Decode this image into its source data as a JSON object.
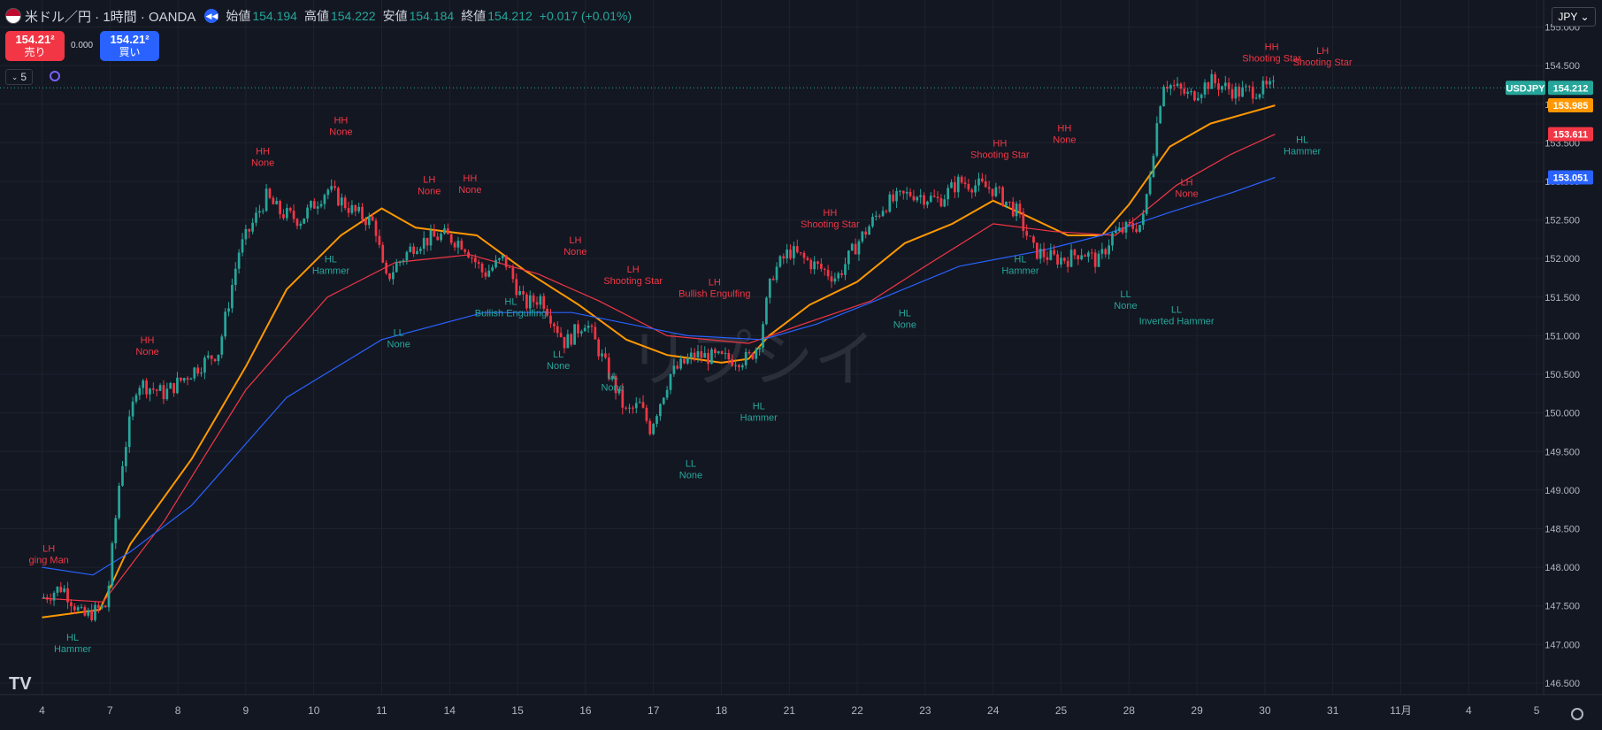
{
  "header": {
    "title": "米ドル／円 · 1時間 · OANDA",
    "open_label": "始値",
    "open": "154.194",
    "high_label": "高値",
    "high": "154.222",
    "low_label": "安値",
    "low": "154.184",
    "close_label": "終値",
    "close": "154.212",
    "change": "+0.017 (+0.01%)",
    "flag_icon": "us-flag-icon",
    "replay_icon": "rewind-icon"
  },
  "trade": {
    "sell_price": "154.21²",
    "sell_label": "売り",
    "buy_price": "154.21²",
    "buy_label": "買い",
    "spread": "0.000"
  },
  "indicator": {
    "count": "5"
  },
  "currency": "JPY ⌄",
  "logo": "TV",
  "colors": {
    "background": "#131722",
    "grid": "#1e222d",
    "up": "#26a69a",
    "down": "#f23645",
    "ma_fast": "#ff9800",
    "ma_mid": "#f23645",
    "ma_slow": "#2962ff",
    "axis_text": "#b2b5be"
  },
  "chart_data": {
    "type": "candlestick",
    "symbol": "USDJPY",
    "price_axis": {
      "ticks": [
        "155.000",
        "154.500",
        "154.000",
        "153.500",
        "153.000",
        "152.500",
        "152.000",
        "151.500",
        "151.000",
        "150.500",
        "150.000",
        "149.500",
        "149.000",
        "148.500",
        "148.000",
        "147.500",
        "147.000",
        "146.500"
      ],
      "range": [
        146.35,
        155.35
      ]
    },
    "time_axis": {
      "ticks": [
        "4",
        "7",
        "8",
        "9",
        "10",
        "11",
        "14",
        "15",
        "16",
        "17",
        "18",
        "21",
        "22",
        "23",
        "24",
        "25",
        "28",
        "29",
        "30",
        "31",
        "11月",
        "4",
        "5"
      ]
    },
    "price_labels": [
      {
        "text": "USDJPY",
        "value": 154.212,
        "color": "#26a69a"
      },
      {
        "text": "154.212",
        "value": 154.212,
        "color": "#26a69a"
      },
      {
        "text": "153.985",
        "value": 153.985,
        "color": "#ff9800"
      },
      {
        "text": "153.611",
        "value": 153.611,
        "color": "#f23645"
      },
      {
        "text": "153.051",
        "value": 153.051,
        "color": "#2962ff"
      }
    ],
    "price_path": [
      [
        0,
        147.6
      ],
      [
        0.3,
        147.75
      ],
      [
        0.6,
        147.35
      ],
      [
        0.95,
        147.5
      ],
      [
        1.15,
        149.2
      ],
      [
        1.4,
        150.4
      ],
      [
        1.8,
        150.25
      ],
      [
        2.3,
        150.6
      ],
      [
        2.6,
        150.8
      ],
      [
        2.9,
        152.1
      ],
      [
        3.3,
        152.8
      ],
      [
        3.5,
        152.6
      ],
      [
        3.8,
        152.5
      ],
      [
        4.2,
        152.9
      ],
      [
        4.6,
        152.6
      ],
      [
        4.9,
        152.45
      ],
      [
        5.05,
        151.7
      ],
      [
        5.2,
        151.9
      ],
      [
        5.5,
        152.2
      ],
      [
        5.9,
        152.3
      ],
      [
        6.2,
        152.2
      ],
      [
        6.5,
        151.8
      ],
      [
        6.8,
        152.0
      ],
      [
        7.1,
        151.4
      ],
      [
        7.35,
        151.5
      ],
      [
        7.7,
        150.9
      ],
      [
        8.0,
        151.2
      ],
      [
        8.2,
        150.8
      ],
      [
        8.6,
        150.0
      ],
      [
        8.8,
        150.1
      ],
      [
        8.95,
        149.8
      ],
      [
        9.25,
        150.5
      ],
      [
        9.6,
        150.75
      ],
      [
        10.0,
        150.7
      ],
      [
        10.4,
        150.7
      ],
      [
        10.55,
        150.9
      ],
      [
        10.75,
        151.8
      ],
      [
        11.0,
        152.1
      ],
      [
        11.4,
        151.9
      ],
      [
        11.7,
        151.75
      ],
      [
        12.0,
        152.2
      ],
      [
        12.4,
        152.7
      ],
      [
        12.8,
        152.85
      ],
      [
        13.2,
        152.75
      ],
      [
        13.5,
        153.0
      ],
      [
        13.75,
        152.95
      ],
      [
        14.0,
        152.9
      ],
      [
        14.35,
        152.6
      ],
      [
        14.6,
        152.1
      ],
      [
        14.9,
        152.0
      ],
      [
        15.1,
        152.0
      ],
      [
        15.3,
        152.1
      ],
      [
        15.55,
        151.95
      ],
      [
        15.75,
        152.3
      ],
      [
        16.0,
        152.4
      ],
      [
        16.2,
        152.45
      ],
      [
        16.5,
        154.3
      ],
      [
        16.9,
        154.1
      ],
      [
        17.2,
        154.3
      ],
      [
        17.6,
        154.15
      ],
      [
        18.0,
        154.2
      ],
      [
        18.15,
        154.21
      ]
    ],
    "candle_count": 360,
    "moving_averages": [
      {
        "color": "#ff9800",
        "points": [
          [
            0,
            147.35
          ],
          [
            0.85,
            147.45
          ],
          [
            1.3,
            148.3
          ],
          [
            2.2,
            149.4
          ],
          [
            3.0,
            150.6
          ],
          [
            3.6,
            151.6
          ],
          [
            4.4,
            152.3
          ],
          [
            5.0,
            152.65
          ],
          [
            5.5,
            152.4
          ],
          [
            6.4,
            152.3
          ],
          [
            7.1,
            151.85
          ],
          [
            7.9,
            151.4
          ],
          [
            8.6,
            150.95
          ],
          [
            9.2,
            150.75
          ],
          [
            10.0,
            150.65
          ],
          [
            10.4,
            150.7
          ],
          [
            10.7,
            151.0
          ],
          [
            11.3,
            151.4
          ],
          [
            12.0,
            151.7
          ],
          [
            12.7,
            152.2
          ],
          [
            13.4,
            152.45
          ],
          [
            14.0,
            152.75
          ],
          [
            14.5,
            152.55
          ],
          [
            15.1,
            152.3
          ],
          [
            15.6,
            152.3
          ],
          [
            16.0,
            152.7
          ],
          [
            16.6,
            153.45
          ],
          [
            17.2,
            153.75
          ],
          [
            18.15,
            153.985
          ]
        ]
      },
      {
        "color": "#f23645",
        "points": [
          [
            0,
            147.6
          ],
          [
            0.9,
            147.55
          ],
          [
            1.8,
            148.6
          ],
          [
            3.0,
            150.3
          ],
          [
            4.2,
            151.5
          ],
          [
            5.2,
            151.95
          ],
          [
            6.3,
            152.05
          ],
          [
            7.3,
            151.8
          ],
          [
            8.2,
            151.45
          ],
          [
            9.2,
            151.0
          ],
          [
            10.4,
            150.9
          ],
          [
            11.2,
            151.15
          ],
          [
            12.2,
            151.45
          ],
          [
            13.0,
            151.9
          ],
          [
            14.0,
            152.45
          ],
          [
            14.9,
            152.35
          ],
          [
            15.8,
            152.3
          ],
          [
            16.7,
            152.95
          ],
          [
            17.5,
            153.35
          ],
          [
            18.15,
            153.611
          ]
        ]
      },
      {
        "color": "#2962ff",
        "points": [
          [
            0,
            148.0
          ],
          [
            0.75,
            147.9
          ],
          [
            1.3,
            148.2
          ],
          [
            2.2,
            148.8
          ],
          [
            3.6,
            150.2
          ],
          [
            5.0,
            150.95
          ],
          [
            6.5,
            151.3
          ],
          [
            7.8,
            151.3
          ],
          [
            9.5,
            151.0
          ],
          [
            10.6,
            150.95
          ],
          [
            11.4,
            151.15
          ],
          [
            12.4,
            151.5
          ],
          [
            13.5,
            151.9
          ],
          [
            14.7,
            152.1
          ],
          [
            15.6,
            152.3
          ],
          [
            16.6,
            152.6
          ],
          [
            17.5,
            152.85
          ],
          [
            18.15,
            153.051
          ]
        ]
      }
    ],
    "annotations": [
      {
        "x": 0.1,
        "y": 148.2,
        "text": [
          "LH",
          "ging Man"
        ],
        "color": "#f23645"
      },
      {
        "x": 0.45,
        "y": 147.05,
        "text": [
          "HL",
          "Hammer"
        ],
        "color": "#26a69a"
      },
      {
        "x": 1.55,
        "y": 150.9,
        "text": [
          "HH",
          "None"
        ],
        "color": "#f23645"
      },
      {
        "x": 3.25,
        "y": 153.35,
        "text": [
          "HH",
          "None"
        ],
        "color": "#f23645"
      },
      {
        "x": 4.4,
        "y": 153.75,
        "text": [
          "HH",
          "None"
        ],
        "color": "#f23645"
      },
      {
        "x": 4.25,
        "y": 151.95,
        "text": [
          "HL",
          "Hammer"
        ],
        "color": "#26a69a"
      },
      {
        "x": 5.7,
        "y": 152.98,
        "text": [
          "LH",
          "None"
        ],
        "color": "#f23645"
      },
      {
        "x": 5.25,
        "y": 151.0,
        "text": [
          "LL",
          "None"
        ],
        "color": "#26a69a"
      },
      {
        "x": 6.3,
        "y": 153.0,
        "text": [
          "HH",
          "None"
        ],
        "color": "#f23645"
      },
      {
        "x": 6.9,
        "y": 151.4,
        "text": [
          "HL",
          "Bullish Engulfing"
        ],
        "color": "#26a69a"
      },
      {
        "x": 7.85,
        "y": 152.2,
        "text": [
          "LH",
          "None"
        ],
        "color": "#f23645"
      },
      {
        "x": 7.6,
        "y": 150.72,
        "text": [
          "LL",
          "None"
        ],
        "color": "#26a69a"
      },
      {
        "x": 8.7,
        "y": 151.82,
        "text": [
          "LH",
          "Shooting Star"
        ],
        "color": "#f23645"
      },
      {
        "x": 8.4,
        "y": 150.44,
        "text": [
          "LL",
          "None"
        ],
        "color": "#26a69a"
      },
      {
        "x": 9.9,
        "y": 151.65,
        "text": [
          "LH",
          "Bullish Engulfing"
        ],
        "color": "#f23645"
      },
      {
        "x": 9.55,
        "y": 149.3,
        "text": [
          "LL",
          "None"
        ],
        "color": "#26a69a"
      },
      {
        "x": 10.55,
        "y": 150.05,
        "text": [
          "HL",
          "Hammer"
        ],
        "color": "#26a69a"
      },
      {
        "x": 11.6,
        "y": 152.55,
        "text": [
          "HH",
          "Shooting Star"
        ],
        "color": "#f23645"
      },
      {
        "x": 12.7,
        "y": 151.25,
        "text": [
          "HL",
          "None"
        ],
        "color": "#26a69a"
      },
      {
        "x": 14.1,
        "y": 153.45,
        "text": [
          "HH",
          "Shooting Star"
        ],
        "color": "#f23645"
      },
      {
        "x": 14.4,
        "y": 151.95,
        "text": [
          "HL",
          "Hammer"
        ],
        "color": "#26a69a"
      },
      {
        "x": 15.05,
        "y": 153.65,
        "text": [
          "HH",
          "None"
        ],
        "color": "#f23645"
      },
      {
        "x": 15.95,
        "y": 151.5,
        "text": [
          "LL",
          "None"
        ],
        "color": "#26a69a"
      },
      {
        "x": 16.7,
        "y": 151.3,
        "text": [
          "LL",
          "Inverted Hammer"
        ],
        "color": "#26a69a"
      },
      {
        "x": 16.85,
        "y": 152.95,
        "text": [
          "LH",
          "None"
        ],
        "color": "#f23645"
      },
      {
        "x": 18.1,
        "y": 154.7,
        "text": [
          "HH",
          "Shooting Star"
        ],
        "color": "#f23645"
      },
      {
        "x": 18.85,
        "y": 154.65,
        "text": [
          "LH",
          "Shooting Star"
        ],
        "color": "#f23645"
      },
      {
        "x": 18.55,
        "y": 153.5,
        "text": [
          "HL",
          "Hammer"
        ],
        "color": "#26a69a"
      }
    ],
    "watermark": "リプシイ"
  }
}
